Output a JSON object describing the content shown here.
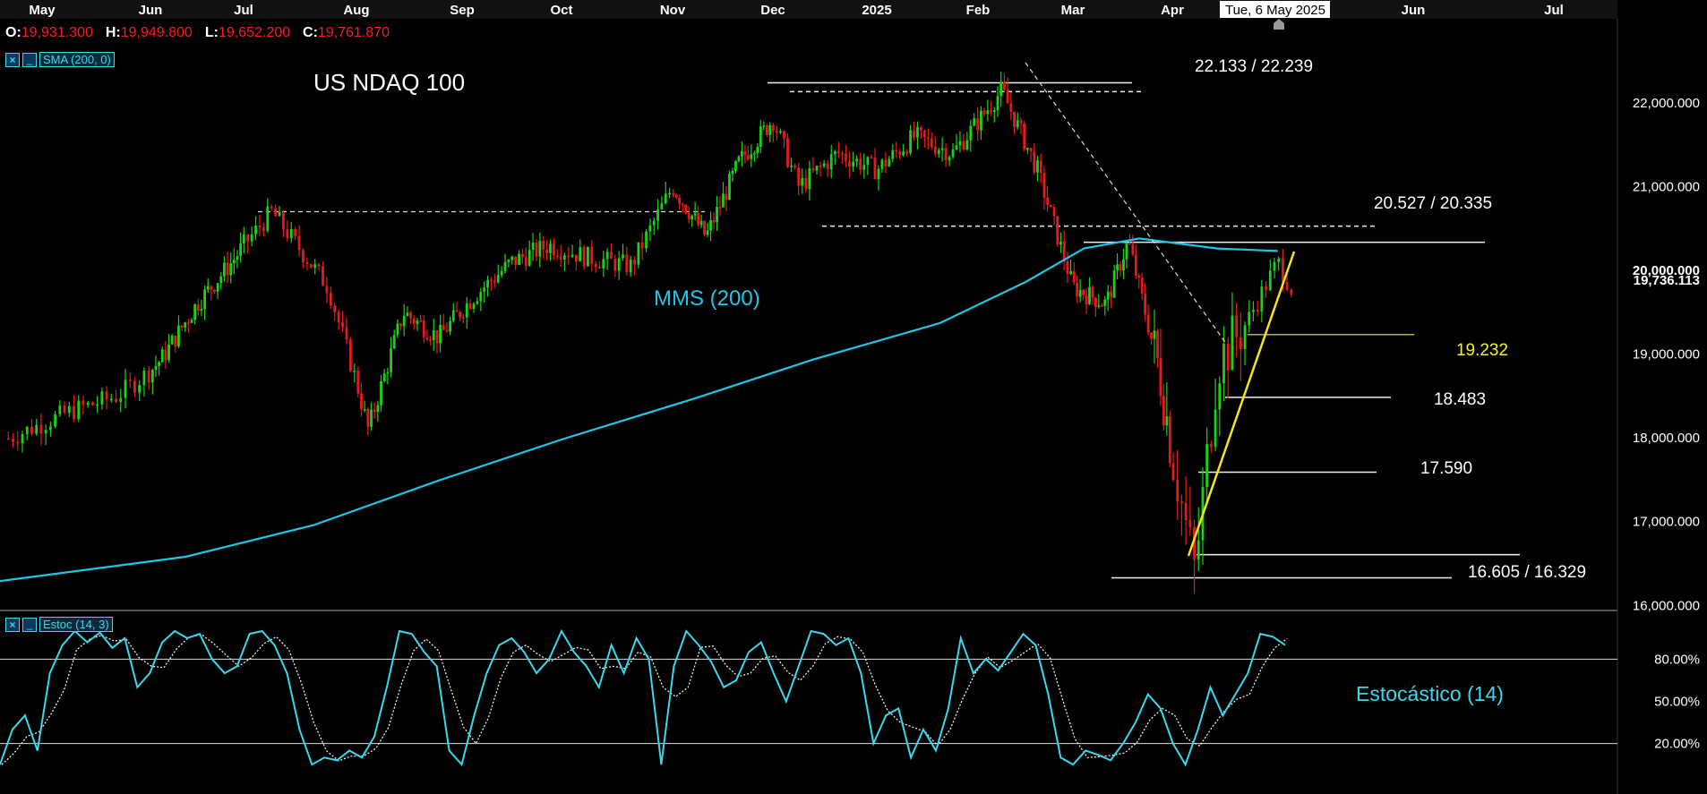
{
  "header": {
    "ohlc": [
      {
        "key": "O:",
        "value": "19,931.300"
      },
      {
        "key": "H:",
        "value": "19,949.800"
      },
      {
        "key": "L:",
        "value": "19,652.200"
      },
      {
        "key": "C:",
        "value": "19,761.870"
      }
    ],
    "cursor_date": "Tue, 6 May 2025"
  },
  "indicators": {
    "sma_label": "SMA (200, 0)",
    "stoch_label": "Estoc (14, 3)"
  },
  "colors": {
    "up": "#19d219",
    "down": "#e51b1b",
    "sma": "#1fc6e6",
    "stoch": "#3ad7ee",
    "trend": "#f5e51a",
    "level_highlight": "#f5f51a"
  },
  "icons": [
    "close-icon",
    "minimize-icon",
    "cursor-marker-icon"
  ],
  "chart_data": [
    {
      "type": "candlestick",
      "title": "US NDAQ 100",
      "x_tick_labels": [
        "May",
        "Jun",
        "Jul",
        "Aug",
        "Sep",
        "Oct",
        "Nov",
        "Dec",
        "2025",
        "Feb",
        "Mar",
        "Apr",
        "Jun",
        "Jul"
      ],
      "y_tick_labels": [
        "22,000.000",
        "21,000.000",
        "20,000.000",
        "19,000.000",
        "18,000.000",
        "17,000.000",
        "16,000.000"
      ],
      "ylim": [
        15960,
        22960
      ],
      "last_price_label": "19,736.113",
      "series_label": "MMS (200)",
      "sma200": [
        [
          2024.33,
          16290
        ],
        [
          2024.45,
          16580
        ],
        [
          2024.55,
          16960
        ],
        [
          2024.65,
          17490
        ],
        [
          2024.75,
          17980
        ],
        [
          2024.85,
          18470
        ],
        [
          2024.95,
          18930
        ],
        [
          2025.05,
          19370
        ],
        [
          2025.12,
          19860
        ],
        [
          2025.17,
          20260
        ],
        [
          2025.22,
          20380
        ],
        [
          2025.28,
          20260
        ],
        [
          2025.32,
          20230
        ]
      ],
      "ohlc_path": [
        [
          2024.33,
          17950
        ],
        [
          2024.37,
          18300
        ],
        [
          2024.4,
          18500
        ],
        [
          2024.43,
          18950
        ],
        [
          2024.46,
          19600
        ],
        [
          2024.49,
          20100
        ],
        [
          2024.52,
          20700
        ],
        [
          2024.56,
          19800
        ],
        [
          2024.59,
          18100
        ],
        [
          2024.62,
          19500
        ],
        [
          2024.65,
          19200
        ],
        [
          2024.68,
          19700
        ],
        [
          2024.71,
          20100
        ],
        [
          2024.74,
          20300
        ],
        [
          2024.77,
          20150
        ],
        [
          2024.8,
          20050
        ],
        [
          2024.83,
          21000
        ],
        [
          2024.86,
          20400
        ],
        [
          2024.89,
          21300
        ],
        [
          2024.92,
          21800
        ],
        [
          2024.94,
          21000
        ],
        [
          2024.97,
          21400
        ],
        [
          2025.0,
          21200
        ],
        [
          2025.03,
          21600
        ],
        [
          2025.06,
          21400
        ],
        [
          2025.1,
          22150
        ],
        [
          2025.13,
          21200
        ],
        [
          2025.16,
          19800
        ],
        [
          2025.19,
          19600
        ],
        [
          2025.21,
          20350
        ],
        [
          2025.24,
          18700
        ],
        [
          2025.265,
          16400
        ],
        [
          2025.28,
          18900
        ],
        [
          2025.3,
          19400
        ],
        [
          2025.32,
          20100
        ],
        [
          2025.33,
          19750
        ]
      ],
      "levels": [
        {
          "label": "22.133 / 22.239",
          "values": [
            22239,
            22133
          ]
        },
        {
          "label": "20.527 / 20.335",
          "values": [
            20527,
            20335
          ]
        },
        {
          "label": "19.232",
          "values": [
            19232
          ]
        },
        {
          "label": "18.483",
          "values": [
            18483
          ]
        },
        {
          "label": "17.590",
          "values": [
            17590
          ]
        },
        {
          "label": "16.605 / 16.329",
          "values": [
            16605,
            16329
          ]
        }
      ],
      "resistance_dashed": [
        20700,
        22050,
        20550
      ]
    },
    {
      "type": "line",
      "title": "Estocástico (14)",
      "y_tick_labels": [
        "80.00%",
        "50.00%",
        "20.00%"
      ],
      "ylim": [
        0,
        100
      ],
      "reference_lines": [
        80,
        20
      ],
      "k_values": [
        5,
        30,
        40,
        15,
        70,
        90,
        100,
        92,
        99,
        88,
        95,
        60,
        70,
        92,
        100,
        95,
        98,
        80,
        70,
        75,
        98,
        100,
        90,
        70,
        30,
        5,
        10,
        8,
        15,
        10,
        25,
        60,
        100,
        98,
        85,
        75,
        15,
        5,
        40,
        70,
        90,
        95,
        85,
        70,
        80,
        100,
        85,
        75,
        60,
        90,
        70,
        95,
        80,
        5,
        75,
        100,
        90,
        78,
        60,
        65,
        85,
        92,
        70,
        50,
        75,
        100,
        98,
        90,
        95,
        70,
        20,
        40,
        45,
        10,
        30,
        15,
        45,
        95,
        70,
        80,
        72,
        85,
        98,
        90,
        55,
        10,
        5,
        15,
        12,
        8,
        20,
        35,
        55,
        45,
        20,
        5,
        30,
        60,
        40,
        55,
        70,
        98,
        96,
        90
      ]
    }
  ]
}
